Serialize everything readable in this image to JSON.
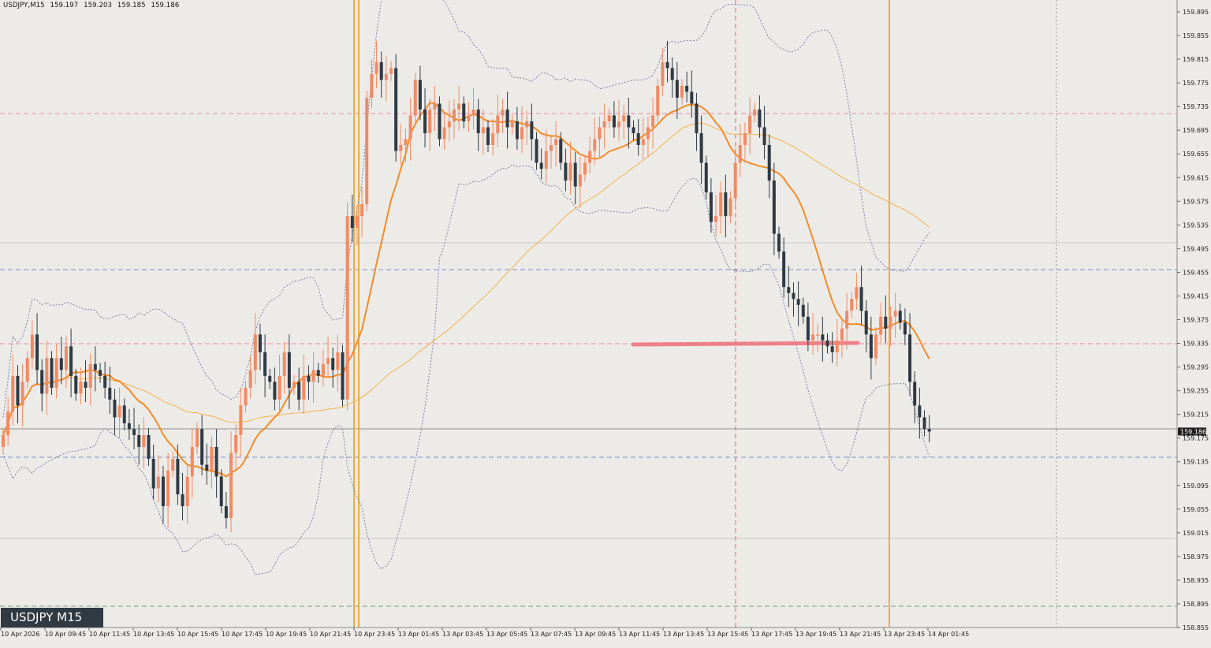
{
  "header": {
    "symbol_tf": "USDJPY,M15",
    "ohlc": [
      "159.197",
      "159.203",
      "159.185",
      "159.186"
    ]
  },
  "symbol_label": "USDJPY M15",
  "colors": {
    "background": "#ecebe8",
    "bull": "#f28a63",
    "bear": "#2f3a43",
    "ma_fast": "#f28c28",
    "ma_slow": "#f6b24a",
    "bollinger": "#7b7fa6",
    "session_line": "#f29b1e",
    "pink_level": "#ee8aa8",
    "blue_level": "#7a90c4",
    "green_level": "#6fa37e",
    "red_vline": "#e46464",
    "zone": "#f0707a"
  },
  "chart_data": {
    "type": "candlestick",
    "ylim": [
      158.855,
      159.915
    ],
    "y_ticks": [
      "159.895",
      "159.855",
      "159.815",
      "159.775",
      "159.735",
      "159.695",
      "159.655",
      "159.615",
      "159.575",
      "159.535",
      "159.495",
      "159.455",
      "159.415",
      "159.375",
      "159.335",
      "159.295",
      "159.255",
      "159.215",
      "159.175",
      "159.135",
      "159.095",
      "159.055",
      "159.015",
      "158.975",
      "158.935",
      "158.895",
      "158.855"
    ],
    "x_ticks": [
      "10 Apr 2026",
      "10 Apr 09:45",
      "10 Apr 11:45",
      "10 Apr 13:45",
      "10 Apr 15:45",
      "10 Apr 17:45",
      "10 Apr 19:45",
      "10 Apr 21:45",
      "10 Apr 23:45",
      "13 Apr 01:45",
      "13 Apr 03:45",
      "13 Apr 05:45",
      "13 Apr 07:45",
      "13 Apr 09:45",
      "13 Apr 11:45",
      "13 Apr 13:45",
      "13 Apr 15:45",
      "13 Apr 17:45",
      "13 Apr 19:45",
      "13 Apr 21:45",
      "13 Apr 23:45",
      "14 Apr 01:45"
    ],
    "current_price": "159.186",
    "closes": [
      159.18,
      159.22,
      159.28,
      159.23,
      159.27,
      159.31,
      159.35,
      159.29,
      159.25,
      159.31,
      159.26,
      159.31,
      159.29,
      159.33,
      159.28,
      159.25,
      159.27,
      159.26,
      159.3,
      159.29,
      159.28,
      159.26,
      159.24,
      159.21,
      159.23,
      159.2,
      159.19,
      159.18,
      159.16,
      159.18,
      159.14,
      159.09,
      159.11,
      159.06,
      159.12,
      159.14,
      159.08,
      159.06,
      159.11,
      159.16,
      159.19,
      159.13,
      159.12,
      159.16,
      159.11,
      159.06,
      159.04,
      159.15,
      159.18,
      159.23,
      159.26,
      159.29,
      159.35,
      159.32,
      159.28,
      159.27,
      159.24,
      159.28,
      159.32,
      159.26,
      159.27,
      159.24,
      159.28,
      159.27,
      159.29,
      159.28,
      159.3,
      159.31,
      159.29,
      159.32,
      159.24,
      159.55,
      159.53,
      159.55,
      159.57,
      159.75,
      159.79,
      159.81,
      159.78,
      159.79,
      159.8,
      159.66,
      159.67,
      159.68,
      159.72,
      159.78,
      159.73,
      159.69,
      159.73,
      159.74,
      159.68,
      159.7,
      159.71,
      159.73,
      159.74,
      159.71,
      159.72,
      159.73,
      159.69,
      159.7,
      159.67,
      159.69,
      159.72,
      159.73,
      159.7,
      159.71,
      159.68,
      159.7,
      159.71,
      159.68,
      159.64,
      159.63,
      159.66,
      159.67,
      159.68,
      159.64,
      159.61,
      159.64,
      159.6,
      159.62,
      159.64,
      159.66,
      159.68,
      159.7,
      159.71,
      159.72,
      159.7,
      159.71,
      159.72,
      159.7,
      159.69,
      159.67,
      159.68,
      159.7,
      159.72,
      159.77,
      159.81,
      159.8,
      159.78,
      159.75,
      159.77,
      159.76,
      159.74,
      159.69,
      159.64,
      159.59,
      159.54,
      159.55,
      159.59,
      159.55,
      159.58,
      159.64,
      159.67,
      159.69,
      159.72,
      159.73,
      159.7,
      159.67,
      159.61,
      159.52,
      159.49,
      159.43,
      159.42,
      159.41,
      159.4,
      159.38,
      159.34,
      159.35,
      159.35,
      159.34,
      159.33,
      159.32,
      159.34,
      159.36,
      159.39,
      159.41,
      159.43,
      159.39,
      159.35,
      159.31,
      159.35,
      159.38,
      159.36,
      159.38,
      159.39,
      159.37,
      159.35,
      159.27,
      159.23,
      159.21,
      159.19,
      159.186
    ],
    "moving_averages": [
      {
        "period_type": "fast"
      },
      {
        "period_type": "slow"
      }
    ],
    "bollinger_bands": true,
    "grid": false
  }
}
